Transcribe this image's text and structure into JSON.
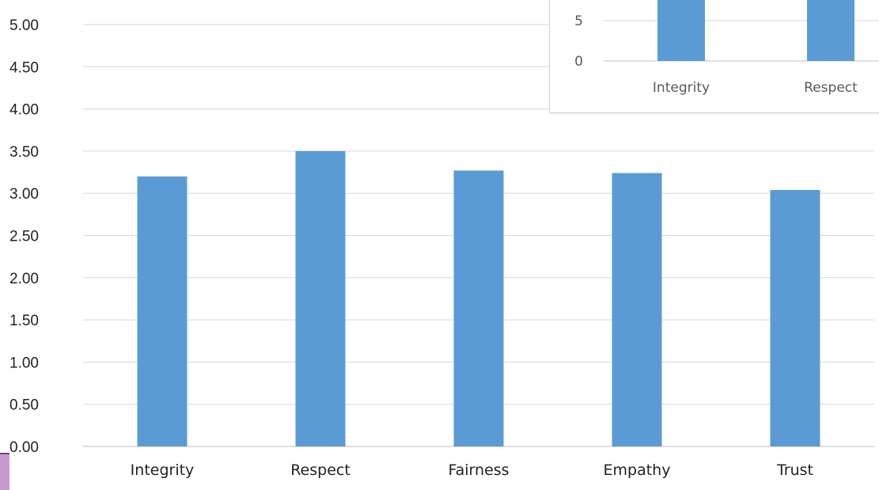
{
  "chart_data": [
    {
      "type": "bar",
      "categories": [
        "Integrity",
        "Respect",
        "Fairness",
        "Empathy",
        "Trust"
      ],
      "values": [
        3.2,
        3.5,
        3.27,
        3.24,
        3.04
      ],
      "title": "",
      "xlabel": "",
      "ylabel": "",
      "ylim": [
        0,
        5
      ],
      "yticks": [
        "0.00",
        "0.50",
        "1.00",
        "1.50",
        "2.00",
        "2.50",
        "3.00",
        "3.50",
        "4.00",
        "4.50",
        "5.00"
      ],
      "grid": true,
      "bar_color": "#5b9bd5",
      "grid_color": "#d9d9d9"
    },
    {
      "type": "bar",
      "categories": [
        "Integrity",
        "Respect"
      ],
      "ylim": [
        0,
        10
      ],
      "yticks": [
        "0",
        "5"
      ],
      "grid": true,
      "bar_color": "#5b9bd5",
      "grid_color": "#d9d9d9",
      "partially_visible": true
    }
  ]
}
